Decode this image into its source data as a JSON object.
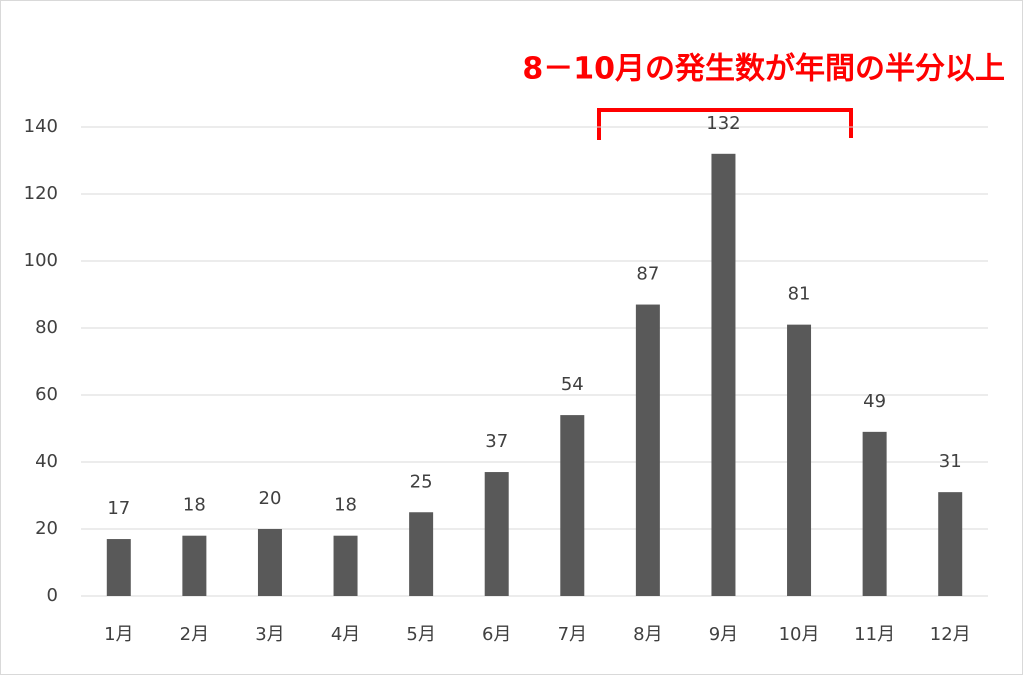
{
  "chart_data": {
    "type": "bar",
    "annotation": "8－10月の発生数が年間の半分以上",
    "categories": [
      "1月",
      "2月",
      "3月",
      "4月",
      "5月",
      "6月",
      "7月",
      "8月",
      "9月",
      "10月",
      "11月",
      "12月"
    ],
    "values": [
      17,
      18,
      20,
      18,
      25,
      37,
      54,
      87,
      132,
      81,
      49,
      31
    ],
    "color": "#595959",
    "ylim": [
      0,
      140
    ],
    "yticks": [
      0,
      20,
      40,
      60,
      80,
      100,
      120,
      140
    ],
    "grid": true
  }
}
